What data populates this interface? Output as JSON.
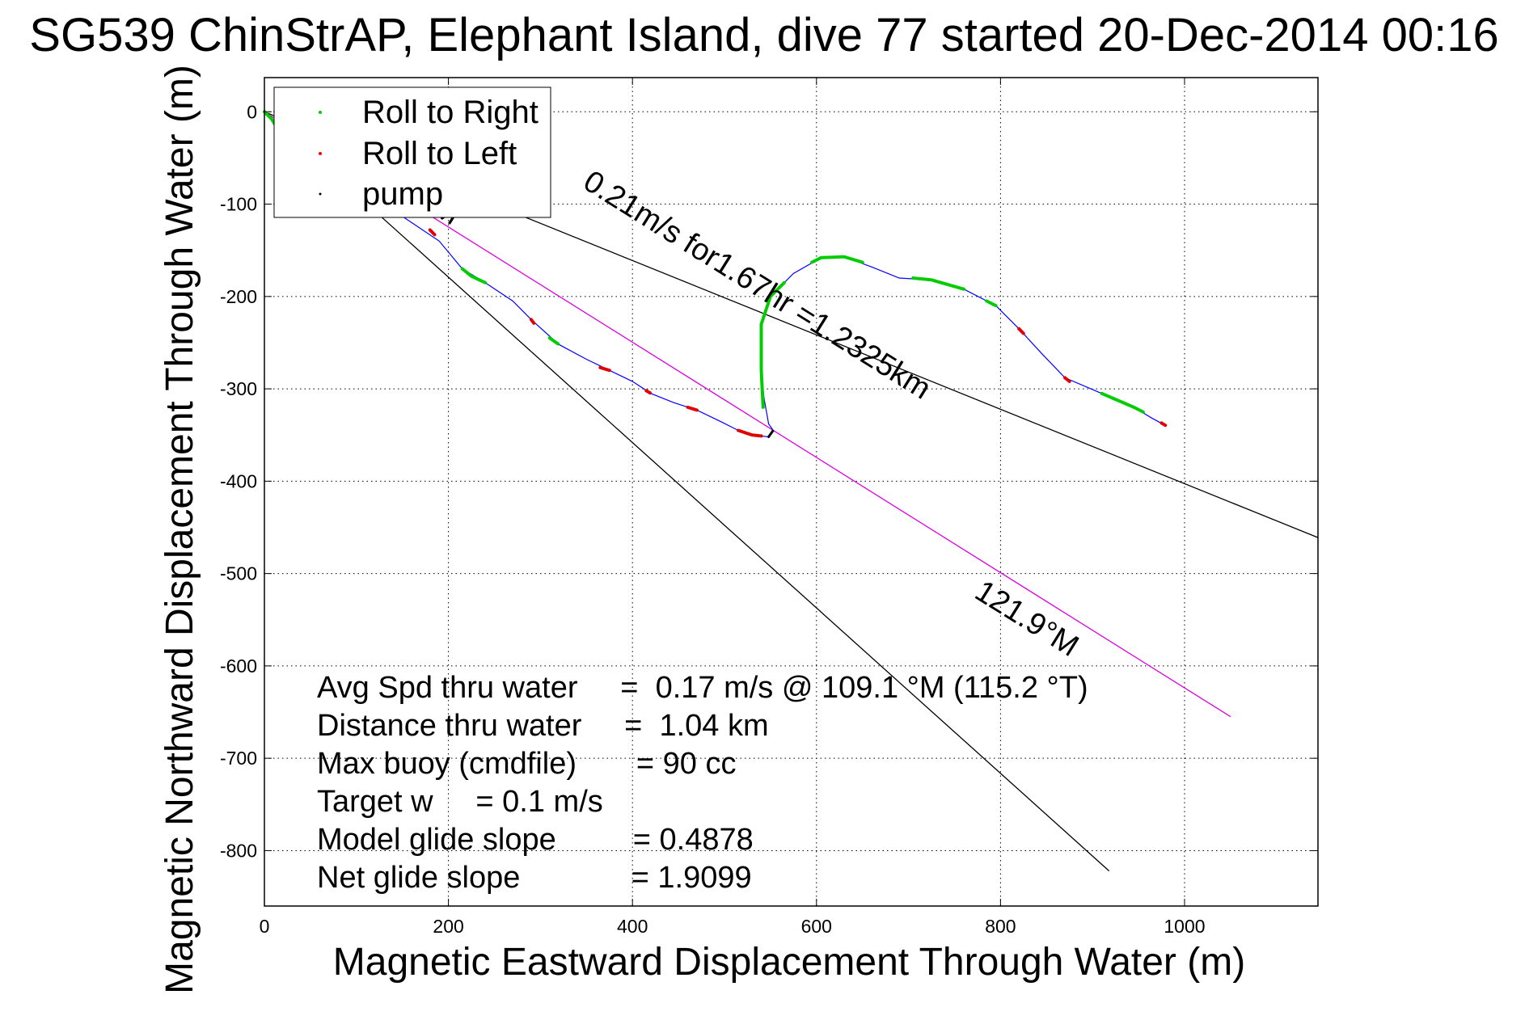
{
  "chart_data": {
    "type": "scatter",
    "title": "SG539 ChinStrAP, Elephant Island, dive 77 started 20-Dec-2014 00:16",
    "xlabel": "Magnetic Eastward Displacement Through Water (m)",
    "ylabel": "Magnetic Northward Displacement Through Water (m)",
    "xlim": [
      0,
      1145
    ],
    "ylim": [
      -860,
      37
    ],
    "x_ticks": [
      0,
      200,
      400,
      600,
      800,
      1000
    ],
    "y_ticks": [
      0,
      -100,
      -200,
      -300,
      -400,
      -500,
      -600,
      -700,
      -800
    ],
    "grid": true,
    "legend": {
      "placement": "top-left",
      "entries": [
        {
          "label": "Roll to Right",
          "color": "#00cc00"
        },
        {
          "label": "Roll to Left",
          "color": "#ff0000"
        },
        {
          "label": "pump",
          "color": "#000000"
        }
      ]
    },
    "track": {
      "color": "#0000ff",
      "points": [
        [
          0,
          0
        ],
        [
          8,
          -8
        ],
        [
          15,
          -20
        ],
        [
          35,
          -30
        ],
        [
          60,
          -40
        ],
        [
          85,
          -60
        ],
        [
          110,
          -80
        ],
        [
          130,
          -100
        ],
        [
          160,
          -120
        ],
        [
          190,
          -140
        ],
        [
          215,
          -170
        ],
        [
          240,
          -185
        ],
        [
          270,
          -205
        ],
        [
          290,
          -225
        ],
        [
          320,
          -252
        ],
        [
          350,
          -268
        ],
        [
          375,
          -280
        ],
        [
          400,
          -292
        ],
        [
          420,
          -305
        ],
        [
          445,
          -315
        ],
        [
          470,
          -323
        ],
        [
          495,
          -335
        ],
        [
          515,
          -345
        ],
        [
          530,
          -350
        ],
        [
          548,
          -352
        ],
        [
          553,
          -345
        ],
        [
          548,
          -338
        ],
        [
          543,
          -310
        ],
        [
          540,
          -280
        ],
        [
          540,
          -230
        ],
        [
          550,
          -200
        ],
        [
          575,
          -175
        ],
        [
          605,
          -158
        ],
        [
          630,
          -157
        ],
        [
          660,
          -168
        ],
        [
          690,
          -180
        ],
        [
          725,
          -182
        ],
        [
          760,
          -192
        ],
        [
          795,
          -210
        ],
        [
          820,
          -235
        ],
        [
          845,
          -262
        ],
        [
          870,
          -288
        ],
        [
          910,
          -305
        ],
        [
          945,
          -320
        ],
        [
          965,
          -332
        ],
        [
          980,
          -340
        ]
      ]
    },
    "roll_right_segments": [
      [
        [
          0,
          0
        ],
        [
          8,
          -8
        ],
        [
          15,
          -20
        ]
      ],
      [
        [
          215,
          -170
        ],
        [
          225,
          -178
        ],
        [
          240,
          -185
        ]
      ],
      [
        [
          310,
          -245
        ],
        [
          320,
          -252
        ]
      ],
      [
        [
          542,
          -320
        ],
        [
          540,
          -280
        ],
        [
          540,
          -230
        ],
        [
          550,
          -200
        ],
        [
          565,
          -185
        ]
      ],
      [
        [
          595,
          -163
        ],
        [
          605,
          -158
        ],
        [
          630,
          -157
        ],
        [
          650,
          -163
        ]
      ],
      [
        [
          705,
          -180
        ],
        [
          725,
          -182
        ],
        [
          760,
          -192
        ]
      ],
      [
        [
          785,
          -205
        ],
        [
          795,
          -210
        ]
      ],
      [
        [
          910,
          -305
        ],
        [
          945,
          -320
        ],
        [
          955,
          -325
        ]
      ]
    ],
    "roll_left_segments": [
      [
        [
          180,
          -128
        ],
        [
          185,
          -133
        ]
      ],
      [
        [
          290,
          -225
        ],
        [
          293,
          -229
        ]
      ],
      [
        [
          365,
          -277
        ],
        [
          375,
          -280
        ]
      ],
      [
        [
          415,
          -302
        ],
        [
          420,
          -305
        ]
      ],
      [
        [
          460,
          -320
        ],
        [
          470,
          -323
        ]
      ],
      [
        [
          515,
          -345
        ],
        [
          530,
          -350
        ],
        [
          540,
          -351
        ]
      ],
      [
        [
          820,
          -235
        ],
        [
          825,
          -240
        ]
      ],
      [
        [
          870,
          -288
        ],
        [
          875,
          -292
        ]
      ],
      [
        [
          975,
          -337
        ],
        [
          980,
          -340
        ]
      ]
    ],
    "pump_segments": [
      [
        [
          548,
          -352
        ],
        [
          553,
          -345
        ]
      ]
    ],
    "reference_lines": [
      {
        "color": "#000000",
        "points": [
          [
            0,
            0
          ],
          [
            1145,
            -461
          ]
        ]
      },
      {
        "color": "#000000",
        "points": [
          [
            0,
            0
          ],
          [
            918,
            -822
          ]
        ]
      },
      {
        "color": "#dd00dd",
        "points": [
          [
            0,
            0
          ],
          [
            1050,
            -655
          ]
        ]
      }
    ],
    "annotations": [
      {
        "text": "121.9°M",
        "x": 0,
        "y": 0,
        "angle": 32,
        "anchor": "start",
        "x_off": 112,
        "y_off": 66
      },
      {
        "text": "0.21m/s for1.67hr =1.2325km",
        "x": 0,
        "y": 0,
        "angle": 32,
        "anchor": "start",
        "x_off": 392,
        "y_off": 93
      },
      {
        "text": "121.9°M",
        "x": 770,
        "y": -525,
        "angle": 32,
        "anchor": "start",
        "x_off": 0,
        "y_off": 0
      }
    ],
    "stats": [
      "Avg Spd thru water     =  0.17 m/s @ 109.1 °M (115.2 °T)",
      "Distance thru water     =  1.04 km",
      "Max buoy (cmdfile)       = 90 cc",
      "Target w     = 0.1 m/s",
      "Model glide slope         = 0.4878",
      "Net glide slope             = 1.9099"
    ]
  }
}
